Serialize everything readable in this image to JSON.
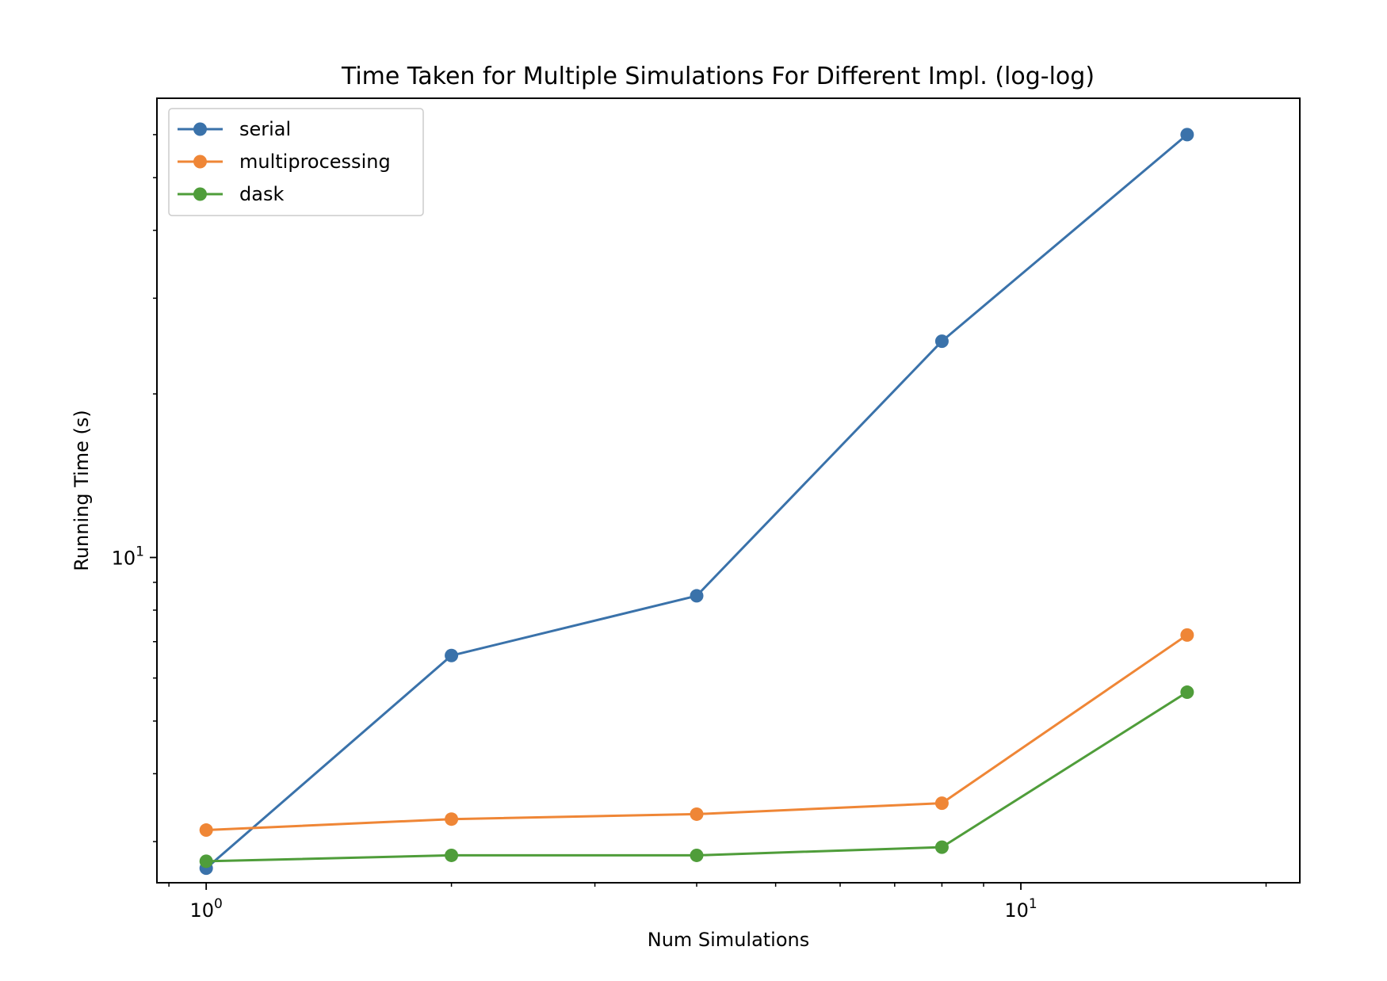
{
  "chart_data": {
    "type": "line",
    "title": "Time Taken for Multiple Simulations For Different Impl. (log-log)",
    "xlabel": "Num Simulations",
    "ylabel": "Running Time (s)",
    "x_scale": "log",
    "y_scale": "log",
    "xlim": [
      0.87,
      22
    ],
    "ylim": [
      2.52,
      70
    ],
    "grid": false,
    "legend_position": "top-left",
    "x": [
      1,
      2,
      4,
      8,
      16
    ],
    "x_major_ticks": [
      {
        "base": "10",
        "exp": "0",
        "value": 1
      },
      {
        "base": "10",
        "exp": "1",
        "value": 10
      }
    ],
    "y_major_ticks": [
      {
        "base": "10",
        "exp": "1",
        "value": 10
      }
    ],
    "series": [
      {
        "name": "serial",
        "color": "#3a72aa",
        "values": [
          2.68,
          6.6,
          8.5,
          25.0,
          60.0
        ]
      },
      {
        "name": "multiprocessing",
        "color": "#ef8636",
        "values": [
          3.15,
          3.3,
          3.37,
          3.53,
          7.2
        ]
      },
      {
        "name": "dask",
        "color": "#4f9d3a",
        "values": [
          2.76,
          2.83,
          2.83,
          2.93,
          5.65
        ]
      }
    ]
  }
}
